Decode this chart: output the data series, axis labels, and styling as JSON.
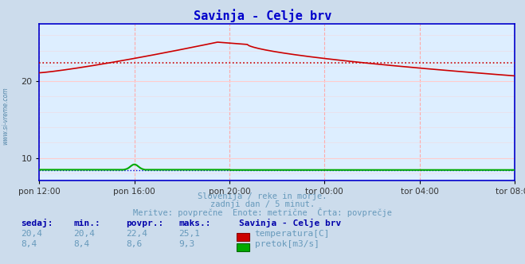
{
  "title": "Savinja - Celje brv",
  "title_color": "#0000cc",
  "bg_color": "#ccdcec",
  "plot_bg_color": "#ddeeff",
  "watermark": "www.si-vreme.com",
  "x_tick_labels": [
    "pon 12:00",
    "pon 16:00",
    "pon 20:00",
    "tor 00:00",
    "tor 04:00",
    "tor 08:00"
  ],
  "x_tick_positions": [
    0,
    48,
    96,
    144,
    192,
    240
  ],
  "n_points": 289,
  "ylim_min": 7.0,
  "ylim_max": 27.5,
  "avg_line_value": 22.4,
  "avg_line_color": "#cc0000",
  "temp_line_color": "#cc0000",
  "flow_line_color": "#00aa00",
  "height_line_color": "#0000cc",
  "grid_color_v": "#ffaaaa",
  "grid_color_h": "#ffcccc",
  "footer_color": "#6699bb",
  "footer_line1": "Slovenija / reke in morje.",
  "footer_line2": "zadnji dan / 5 minut.",
  "footer_line3": "Meritve: povprečne  Enote: metrične  Črta: povprečje",
  "legend_title": "Savinja - Celje brv",
  "label_color": "#0000aa",
  "row1_labels": [
    "sedaj:",
    "min.:",
    "povpr.:",
    "maks.:"
  ],
  "row1_values_temp": [
    "20,4",
    "20,4",
    "22,4",
    "25,1"
  ],
  "row1_values_flow": [
    "8,4",
    "8,4",
    "8,6",
    "9,3"
  ],
  "legend_temp_label": "temperatura[C]",
  "legend_flow_label": "pretok[m3/s]",
  "axis_color": "#0000cc",
  "arrow_color": "#cc0000"
}
